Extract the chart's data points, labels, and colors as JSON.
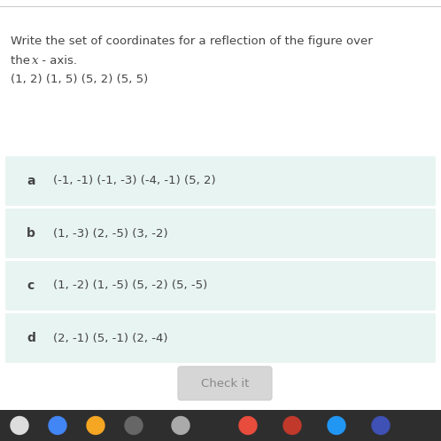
{
  "bg_color": "#ffffff",
  "question_line1": "Write the set of coordinates for a reflection of the figure over",
  "question_line2_plain": "the ",
  "question_line2_italic": "x",
  "question_line2_rest": " - axis.",
  "question_line3": "(1, 2) (1, 5) (5, 2) (5, 5)",
  "options": [
    {
      "label": "a",
      "text": "(-1, -1) (-1, -3) (-4, -1) (5, 2)"
    },
    {
      "label": "b",
      "text": "(1, -3) (2, -5) (3, -2)"
    },
    {
      "label": "c",
      "text": "(1, -2) (1, -5) (5, -2) (5, -5)"
    },
    {
      "label": "d",
      "text": "(2, -1) (5, -1) (2, -4)"
    }
  ],
  "option_bg": "#e8f4f1",
  "option_text_color": "#444444",
  "label_color": "#444444",
  "button_text": "Check it",
  "button_bg": "#d6d6d6",
  "button_text_color": "#888888",
  "button_border_color": "#cccccc",
  "top_border_color": "#cccccc",
  "bottom_bar_color": "#2e2e2e",
  "question_fontsize": 9.5,
  "option_fontsize": 9.5,
  "label_fontsize": 10,
  "button_fontsize": 9.5
}
